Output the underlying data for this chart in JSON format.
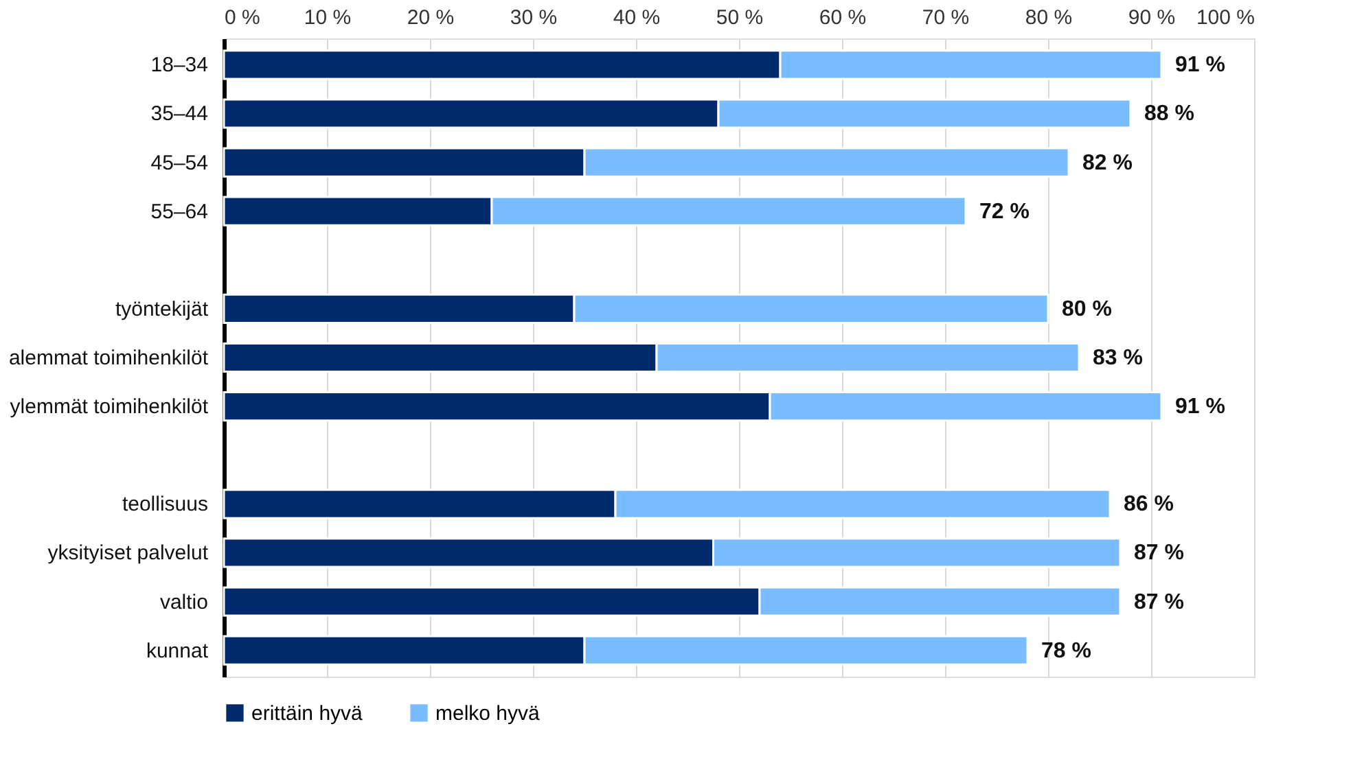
{
  "chart_data": {
    "type": "bar",
    "orientation": "horizontal",
    "stacked": true,
    "categories": [
      "18–34",
      "35–44",
      "45–54",
      "55–64",
      null,
      "työntekijät",
      "alemmat toimihenkilöt",
      "ylemmät toimihenkilöt",
      null,
      "teollisuus",
      "yksityiset palvelut",
      "valtio",
      "kunnat"
    ],
    "series": [
      {
        "name": "erittäin hyvä",
        "color": "#002a6c",
        "values": [
          54,
          48,
          35,
          26,
          null,
          34,
          42,
          53,
          null,
          38,
          47.5,
          52,
          35
        ]
      },
      {
        "name": "melko hyvä",
        "color": "#79bcff",
        "values": [
          37,
          40,
          47,
          46,
          null,
          46,
          41,
          38,
          null,
          48,
          39.5,
          35,
          43
        ]
      }
    ],
    "totals": [
      "91 %",
      "88 %",
      "82 %",
      "72 %",
      null,
      "80 %",
      "83 %",
      "91 %",
      null,
      "86 %",
      "87 %",
      "87 %",
      "78 %"
    ],
    "xlim": [
      0,
      100
    ],
    "xticks": [
      {
        "value": 0,
        "label": "0 %"
      },
      {
        "value": 10,
        "label": "10 %"
      },
      {
        "value": 20,
        "label": "20 %"
      },
      {
        "value": 30,
        "label": "30 %"
      },
      {
        "value": 40,
        "label": "40 %"
      },
      {
        "value": 50,
        "label": "50 %"
      },
      {
        "value": 60,
        "label": "60 %"
      },
      {
        "value": 70,
        "label": "70 %"
      },
      {
        "value": 80,
        "label": "80 %"
      },
      {
        "value": 90,
        "label": "90 %"
      },
      {
        "value": 100,
        "label": "100 %"
      }
    ],
    "grid": "x",
    "legend": "bottom"
  }
}
